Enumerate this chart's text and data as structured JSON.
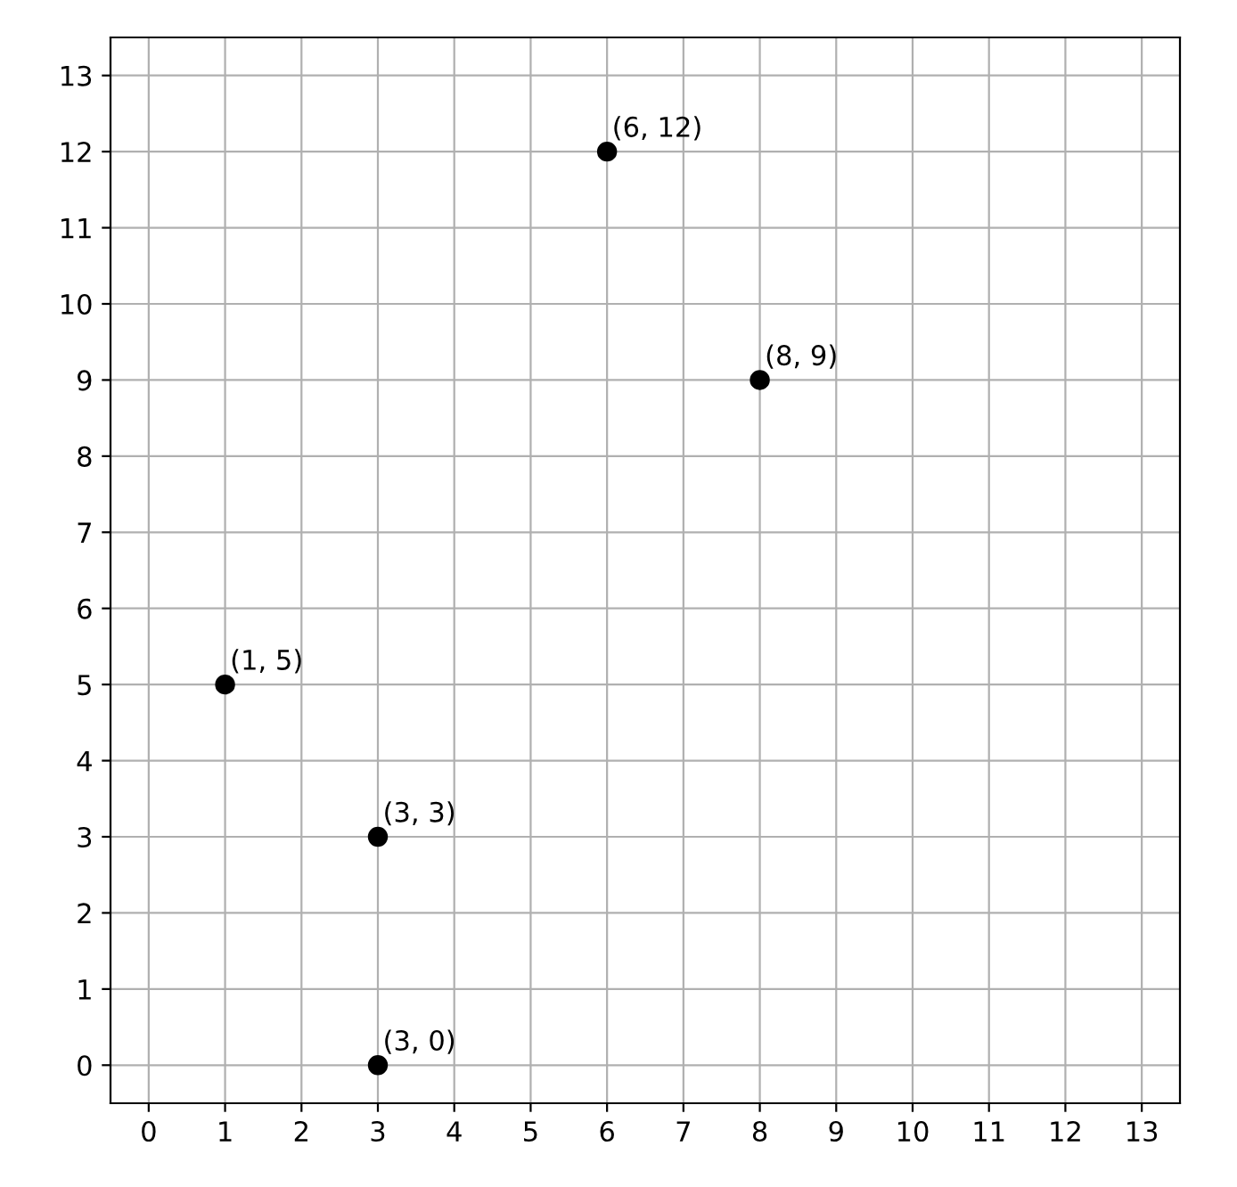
{
  "chart_data": {
    "type": "scatter",
    "x": [
      1,
      3,
      3,
      6,
      8
    ],
    "series": [
      {
        "color": "#000000",
        "values": [
          5,
          3,
          0,
          12,
          9
        ]
      }
    ],
    "annotations": [
      {
        "text": "(1, 5)",
        "x": 1,
        "y": 5
      },
      {
        "text": "(3, 3)",
        "x": 3,
        "y": 3
      },
      {
        "text": "(3, 0)",
        "x": 3,
        "y": 0
      },
      {
        "text": "(6, 12)",
        "x": 6,
        "y": 12
      },
      {
        "text": "(8, 9)",
        "x": 8,
        "y": 9
      }
    ],
    "xlim": [
      -0.5,
      13.5
    ],
    "ylim": [
      -0.5,
      13.5
    ],
    "xticks": [
      0,
      1,
      2,
      3,
      4,
      5,
      6,
      7,
      8,
      9,
      10,
      11,
      12,
      13
    ],
    "yticks": [
      0,
      1,
      2,
      3,
      4,
      5,
      6,
      7,
      8,
      9,
      10,
      11,
      12,
      13
    ],
    "grid": true,
    "marker": "circle"
  }
}
